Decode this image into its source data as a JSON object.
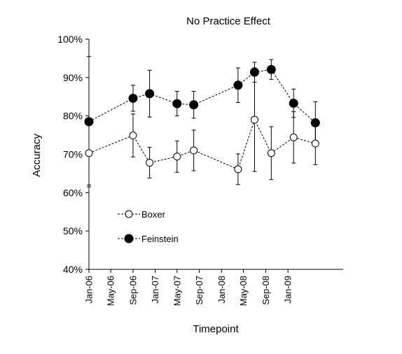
{
  "chart_data": {
    "type": "line",
    "title": "No Practice Effect",
    "xlabel": "Timepoint",
    "ylabel": "Accuracy",
    "ylim": [
      40,
      100
    ],
    "yticks": [
      "40%",
      "50%",
      "60%",
      "70%",
      "80%",
      "90%",
      "100%"
    ],
    "xlim": [
      "2006-01-01",
      "2009-11-01"
    ],
    "xticks": [
      {
        "label": "Jan-06",
        "date": "2006-01-01"
      },
      {
        "label": "May-06",
        "date": "2006-05-01"
      },
      {
        "label": "Sep-06",
        "date": "2006-09-01"
      },
      {
        "label": "Jan-07",
        "date": "2007-01-01"
      },
      {
        "label": "May-07",
        "date": "2007-05-01"
      },
      {
        "label": "Sep-07",
        "date": "2007-09-01"
      },
      {
        "label": "Jan-08",
        "date": "2008-01-01"
      },
      {
        "label": "May-08",
        "date": "2008-05-01"
      },
      {
        "label": "Sep-08",
        "date": "2008-09-01"
      },
      {
        "label": "Jan-09",
        "date": "2009-01-01"
      }
    ],
    "grid": false,
    "legend_position": "lower-left",
    "series": [
      {
        "name": "Boxer",
        "marker": "open-circle",
        "line_style": "dashed",
        "color": "#000000",
        "points": [
          {
            "x": "2006-01-01",
            "y": 70.3,
            "err": 8.3
          },
          {
            "x": "2006-09-01",
            "y": 74.9,
            "err": 5.6
          },
          {
            "x": "2006-12-01",
            "y": 67.8,
            "err": 4.0
          },
          {
            "x": "2007-05-01",
            "y": 69.4,
            "err": 4.1
          },
          {
            "x": "2007-08-01",
            "y": 71.0,
            "err": 5.3
          },
          {
            "x": "2008-04-01",
            "y": 66.1,
            "err": 4.0
          },
          {
            "x": "2008-07-01",
            "y": 79.0,
            "err": 13.5
          },
          {
            "x": "2008-10-01",
            "y": 70.3,
            "err": 6.9
          },
          {
            "x": "2009-02-01",
            "y": 74.4,
            "err": 6.7
          },
          {
            "x": "2009-06-01",
            "y": 72.8,
            "err": 5.5
          }
        ]
      },
      {
        "name": "Feinstein",
        "marker": "filled-circle",
        "line_style": "dashed",
        "color": "#000000",
        "points": [
          {
            "x": "2006-01-01",
            "y": 78.5,
            "err": 17.0
          },
          {
            "x": "2006-09-01",
            "y": 84.6,
            "err": 3.4
          },
          {
            "x": "2006-12-01",
            "y": 85.8,
            "err": 6.1
          },
          {
            "x": "2007-05-01",
            "y": 83.2,
            "err": 3.2
          },
          {
            "x": "2007-08-01",
            "y": 82.9,
            "err": 3.5
          },
          {
            "x": "2008-04-01",
            "y": 88.0,
            "err": 4.5
          },
          {
            "x": "2008-07-01",
            "y": 91.4,
            "err": 2.6
          },
          {
            "x": "2008-10-01",
            "y": 92.1,
            "err": 2.6
          },
          {
            "x": "2009-02-01",
            "y": 83.3,
            "err": 3.7
          },
          {
            "x": "2009-06-01",
            "y": 78.2,
            "err": 5.5
          }
        ]
      }
    ]
  }
}
